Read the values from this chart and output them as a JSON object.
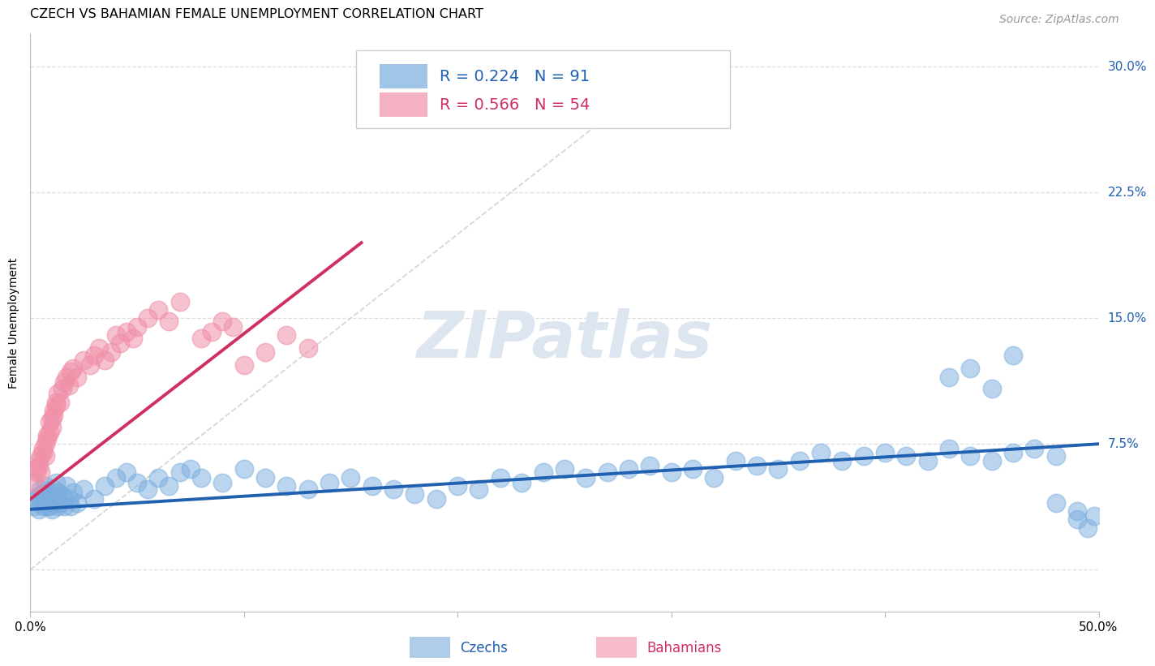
{
  "title": "CZECH VS BAHAMIAN FEMALE UNEMPLOYMENT CORRELATION CHART",
  "source": "Source: ZipAtlas.com",
  "ylabel": "Female Unemployment",
  "xlim": [
    0.0,
    0.5
  ],
  "ylim": [
    -0.025,
    0.32
  ],
  "xticks": [
    0.0,
    0.1,
    0.2,
    0.3,
    0.4,
    0.5
  ],
  "xticklabels": [
    "0.0%",
    "",
    "",
    "",
    "",
    "50.0%"
  ],
  "yticks": [
    0.0,
    0.075,
    0.15,
    0.225,
    0.3
  ],
  "yticklabels": [
    "",
    "7.5%",
    "15.0%",
    "22.5%",
    "30.0%"
  ],
  "czech_R": 0.224,
  "czech_N": 91,
  "bahamas_R": 0.566,
  "bahamas_N": 54,
  "czech_color": "#7aadde",
  "bahamas_color": "#f090a8",
  "trendline_czech_color": "#2060b0",
  "trendline_bahamas_color": "#d03060",
  "diagonal_color": "#cccccc",
  "background_color": "#ffffff",
  "grid_color": "#dddddd",
  "title_fontsize": 11.5,
  "axis_label_fontsize": 10,
  "tick_label_fontsize": 11,
  "legend_fontsize": 14,
  "source_fontsize": 10,
  "czech_x": [
    0.002,
    0.003,
    0.004,
    0.004,
    0.005,
    0.005,
    0.006,
    0.006,
    0.007,
    0.007,
    0.008,
    0.008,
    0.009,
    0.009,
    0.01,
    0.01,
    0.011,
    0.011,
    0.012,
    0.012,
    0.013,
    0.013,
    0.014,
    0.015,
    0.016,
    0.017,
    0.018,
    0.019,
    0.02,
    0.022,
    0.025,
    0.03,
    0.035,
    0.04,
    0.045,
    0.05,
    0.055,
    0.06,
    0.065,
    0.07,
    0.075,
    0.08,
    0.09,
    0.1,
    0.11,
    0.12,
    0.13,
    0.14,
    0.15,
    0.16,
    0.17,
    0.18,
    0.19,
    0.2,
    0.21,
    0.22,
    0.23,
    0.24,
    0.25,
    0.26,
    0.27,
    0.28,
    0.29,
    0.3,
    0.31,
    0.32,
    0.33,
    0.34,
    0.35,
    0.36,
    0.37,
    0.38,
    0.39,
    0.4,
    0.41,
    0.42,
    0.43,
    0.44,
    0.45,
    0.46,
    0.47,
    0.48,
    0.49,
    0.495,
    0.498,
    0.43,
    0.44,
    0.45,
    0.46,
    0.48,
    0.49
  ],
  "czech_y": [
    0.038,
    0.042,
    0.036,
    0.044,
    0.04,
    0.048,
    0.038,
    0.045,
    0.04,
    0.05,
    0.038,
    0.046,
    0.042,
    0.038,
    0.044,
    0.036,
    0.048,
    0.04,
    0.042,
    0.052,
    0.038,
    0.046,
    0.04,
    0.044,
    0.038,
    0.05,
    0.042,
    0.038,
    0.046,
    0.04,
    0.048,
    0.042,
    0.05,
    0.055,
    0.058,
    0.052,
    0.048,
    0.055,
    0.05,
    0.058,
    0.06,
    0.055,
    0.052,
    0.06,
    0.055,
    0.05,
    0.048,
    0.052,
    0.055,
    0.05,
    0.048,
    0.045,
    0.042,
    0.05,
    0.048,
    0.055,
    0.052,
    0.058,
    0.06,
    0.055,
    0.058,
    0.06,
    0.062,
    0.058,
    0.06,
    0.055,
    0.065,
    0.062,
    0.06,
    0.065,
    0.07,
    0.065,
    0.068,
    0.07,
    0.068,
    0.065,
    0.072,
    0.068,
    0.065,
    0.07,
    0.072,
    0.068,
    0.03,
    0.025,
    0.032,
    0.115,
    0.12,
    0.108,
    0.128,
    0.04,
    0.035
  ],
  "bahamas_x": [
    0.002,
    0.003,
    0.003,
    0.004,
    0.004,
    0.005,
    0.005,
    0.006,
    0.006,
    0.007,
    0.007,
    0.008,
    0.008,
    0.009,
    0.009,
    0.01,
    0.01,
    0.011,
    0.011,
    0.012,
    0.012,
    0.013,
    0.014,
    0.015,
    0.016,
    0.017,
    0.018,
    0.019,
    0.02,
    0.022,
    0.025,
    0.028,
    0.03,
    0.032,
    0.035,
    0.038,
    0.04,
    0.042,
    0.045,
    0.048,
    0.05,
    0.055,
    0.06,
    0.065,
    0.07,
    0.08,
    0.085,
    0.09,
    0.095,
    0.1,
    0.11,
    0.12,
    0.13,
    0.28
  ],
  "bahamas_y": [
    0.052,
    0.058,
    0.06,
    0.065,
    0.062,
    0.058,
    0.068,
    0.072,
    0.07,
    0.075,
    0.068,
    0.08,
    0.078,
    0.082,
    0.088,
    0.085,
    0.09,
    0.092,
    0.095,
    0.1,
    0.098,
    0.105,
    0.1,
    0.108,
    0.112,
    0.115,
    0.11,
    0.118,
    0.12,
    0.115,
    0.125,
    0.122,
    0.128,
    0.132,
    0.125,
    0.13,
    0.14,
    0.135,
    0.142,
    0.138,
    0.145,
    0.15,
    0.155,
    0.148,
    0.16,
    0.138,
    0.142,
    0.148,
    0.145,
    0.122,
    0.13,
    0.14,
    0.132,
    0.27
  ],
  "bahamas_trendline_x0": 0.0,
  "bahamas_trendline_y0": 0.042,
  "bahamas_trendline_x1": 0.155,
  "bahamas_trendline_y1": 0.195,
  "czech_trendline_x0": 0.0,
  "czech_trendline_y0": 0.036,
  "czech_trendline_x1": 0.5,
  "czech_trendline_y1": 0.075
}
